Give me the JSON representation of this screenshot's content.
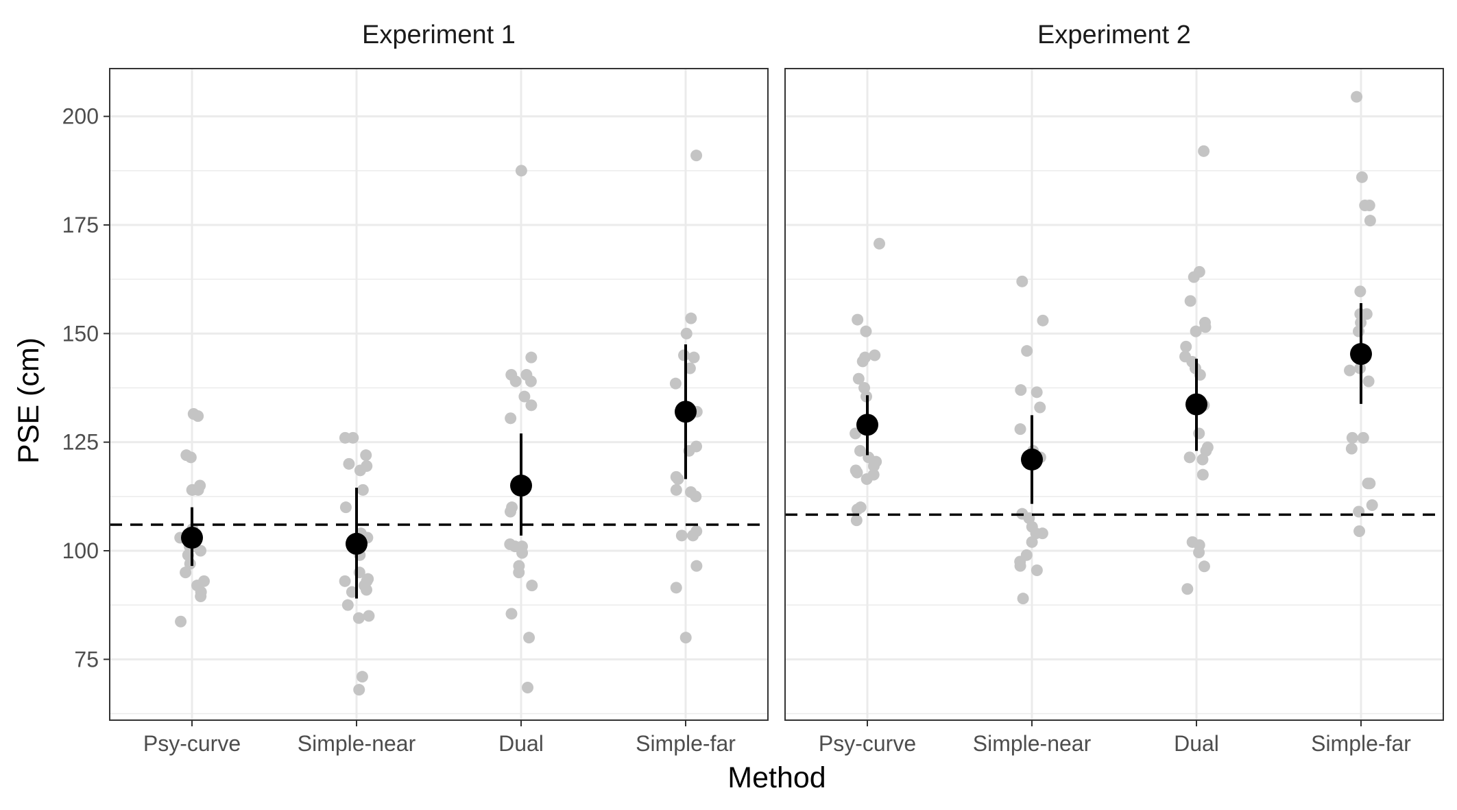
{
  "chart_data": {
    "type": "scatter",
    "xlabel": "Method",
    "ylabel": "PSE (cm)",
    "categories": [
      "Psy-curve",
      "Simple-near",
      "Dual",
      "Simple-far"
    ],
    "ylim": [
      61,
      211
    ],
    "yticks": [
      75,
      100,
      125,
      150,
      175,
      200
    ],
    "grid": true,
    "colors": {
      "points": "#c4c4c4",
      "means": "#000000",
      "grid": "#ebebeb",
      "panel_border": "#333333"
    },
    "panels": [
      {
        "title": "Experiment 1",
        "reference_line": 106,
        "means": [
          {
            "category": "Psy-curve",
            "mean": 103,
            "ci": [
              96.5,
              110
            ]
          },
          {
            "category": "Simple-near",
            "mean": 101.6,
            "ci": [
              89,
              114.5
            ]
          },
          {
            "category": "Dual",
            "mean": 115,
            "ci": [
              103.5,
              127
            ]
          },
          {
            "category": "Simple-far",
            "mean": 132,
            "ci": [
              116.5,
              147.5
            ]
          }
        ],
        "points": [
          {
            "category": "Psy-curve",
            "values": [
              131,
              131.5,
              121.5,
              122,
              115,
              114,
              114,
              114,
              105,
              103,
              102,
              101,
              101,
              100,
              99,
              97,
              95,
              93,
              92,
              90.5,
              89.5,
              83.7
            ]
          },
          {
            "category": "Simple-near",
            "values": [
              126,
              126,
              122,
              120,
              119.5,
              118.5,
              114,
              110,
              104,
              103,
              102,
              100,
              99,
              95,
              93.5,
              93,
              93,
              92,
              91,
              90.5,
              87.5,
              85,
              84.5,
              71,
              68
            ]
          },
          {
            "category": "Dual",
            "values": [
              187.5,
              144.5,
              140.5,
              140.5,
              139,
              139,
              135.5,
              133.5,
              130.5,
              110,
              109,
              101.5,
              101,
              101,
              99.5,
              96.5,
              95,
              92,
              85.5,
              80,
              68.5
            ]
          },
          {
            "category": "Simple-far",
            "values": [
              191,
              153.5,
              150,
              145,
              144.5,
              142,
              138.5,
              132,
              124,
              123,
              117,
              116.5,
              114,
              113.5,
              112.5,
              104.5,
              103.5,
              103.5,
              96.5,
              91.5,
              80
            ]
          }
        ]
      },
      {
        "title": "Experiment 2",
        "reference_line": 108.3,
        "means": [
          {
            "category": "Psy-curve",
            "mean": 129,
            "ci": [
              122,
              135.8
            ]
          },
          {
            "category": "Simple-near",
            "mean": 121,
            "ci": [
              110.8,
              131.2
            ]
          },
          {
            "category": "Dual",
            "mean": 133.7,
            "ci": [
              123,
              144.2
            ]
          },
          {
            "category": "Simple-far",
            "mean": 145.3,
            "ci": [
              133.8,
              157
            ]
          }
        ],
        "points": [
          {
            "category": "Psy-curve",
            "values": [
              170.7,
              153.2,
              150.5,
              145,
              144.5,
              143.6,
              139.6,
              137.5,
              135.5,
              127,
              123,
              121.5,
              120.5,
              119.5,
              118.5,
              118,
              117.5,
              116.5,
              110,
              109.5,
              107
            ]
          },
          {
            "category": "Simple-near",
            "values": [
              162,
              153,
              146,
              137,
              136.5,
              133,
              128,
              123,
              121.5,
              121,
              108.5,
              107.5,
              105.5,
              104,
              104,
              102,
              99,
              97.5,
              96.5,
              95.5,
              89
            ]
          },
          {
            "category": "Dual",
            "values": [
              192,
              164.2,
              163,
              157.5,
              152.5,
              151.5,
              150.5,
              147,
              144.7,
              143.5,
              142,
              140.5,
              133.5,
              127,
              123.8,
              123,
              121.5,
              121,
              117.5,
              102,
              101.3,
              99.6,
              96.4,
              91.2
            ]
          },
          {
            "category": "Simple-far",
            "values": [
              204.5,
              186,
              179.5,
              179.5,
              176,
              159.7,
              154.5,
              154.5,
              152.5,
              150.5,
              142,
              141.5,
              139,
              126,
              126,
              123.5,
              115.5,
              115.5,
              110.5,
              109,
              104.5
            ]
          }
        ]
      }
    ]
  }
}
